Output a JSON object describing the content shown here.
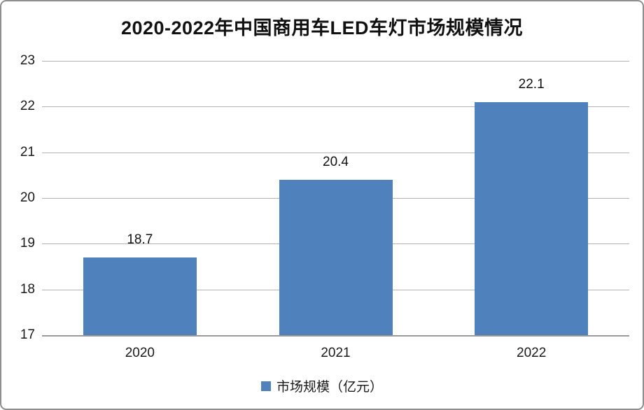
{
  "chart_data": {
    "type": "bar",
    "title": "2020-2022年中国商用车LED车灯市场规模情况",
    "categories": [
      "2020",
      "2021",
      "2022"
    ],
    "series": [
      {
        "name": "市场规模（亿元）",
        "values": [
          18.7,
          20.4,
          22.1
        ]
      }
    ],
    "value_labels": [
      "18.7",
      "20.4",
      "22.1"
    ],
    "yticks": [
      17,
      18,
      19,
      20,
      21,
      22,
      23
    ],
    "ylim": [
      17,
      23
    ],
    "grid": true,
    "legend_position": "bottom",
    "bar_color": "#4F81BD"
  },
  "colors": {
    "bar": "#4F81BD",
    "gridline": "#b3b3b3",
    "axis_line": "#9a9a9a",
    "frame_border": "#8e8e8e",
    "text": "#1a1a1a",
    "background": "#ffffff"
  },
  "legend": {
    "label": "市场规模（亿元）"
  }
}
